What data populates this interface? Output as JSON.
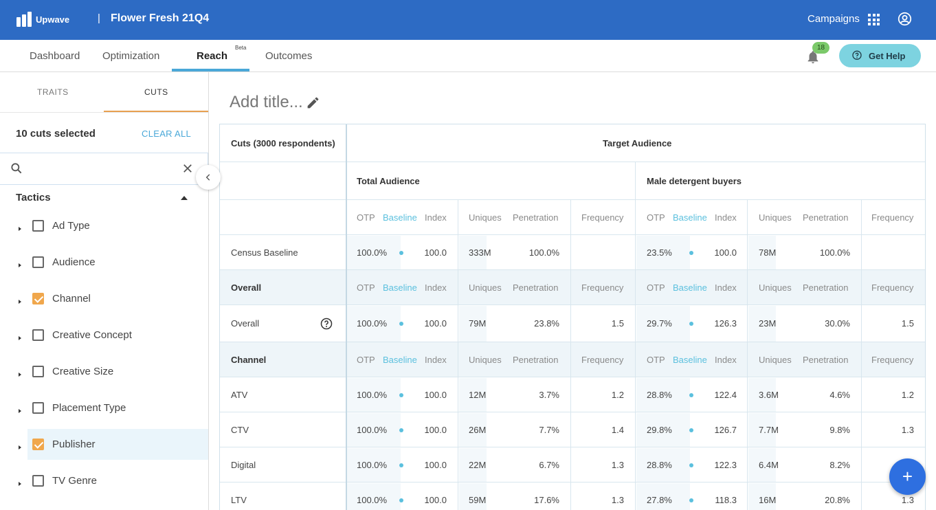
{
  "app": {
    "logo_text": "Upwave",
    "separator": "|",
    "project_name": "Flower Fresh 21Q4",
    "campaigns_label": "Campaigns"
  },
  "nav": {
    "tabs": [
      "Dashboard",
      "Optimization",
      "Reach",
      "Outcomes"
    ],
    "active_tab": "Reach",
    "beta_label": "Beta",
    "notification_count": "18",
    "help_label": "Get Help"
  },
  "sidebar": {
    "tabs": [
      "TRAITS",
      "CUTS"
    ],
    "active_tab": "CUTS",
    "selected_count_label": "10 cuts selected",
    "clear_all_label": "CLEAR ALL",
    "search_placeholder": "",
    "group_title": "Tactics",
    "items": [
      {
        "label": "Ad Type",
        "checked": false
      },
      {
        "label": "Audience",
        "checked": false
      },
      {
        "label": "Channel",
        "checked": true
      },
      {
        "label": "Creative Concept",
        "checked": false
      },
      {
        "label": "Creative Size",
        "checked": false
      },
      {
        "label": "Placement Type",
        "checked": false
      },
      {
        "label": "Publisher",
        "checked": true
      },
      {
        "label": "TV Genre",
        "checked": false
      }
    ]
  },
  "main": {
    "title_placeholder": "Add title...",
    "table": {
      "cuts_header": "Cuts (3000 respondents)",
      "target_header": "Target Audience",
      "audiences": [
        "Total Audience",
        "Male detergent buyers"
      ],
      "metric_labels": {
        "otp": "OTP",
        "baseline": "Baseline",
        "index": "Index",
        "uniques": "Uniques",
        "penetration": "Penetration",
        "frequency": "Frequency"
      },
      "rows": [
        {
          "type": "data",
          "label": "Census Baseline",
          "bold": false,
          "total": {
            "otp": "100.0%",
            "index": "100.0",
            "uniques": "333M",
            "penetration": "100.0%",
            "frequency": ""
          },
          "male": {
            "otp": "23.5%",
            "index": "100.0",
            "uniques": "78M",
            "penetration": "100.0%",
            "frequency": ""
          }
        },
        {
          "type": "section",
          "label": "Overall"
        },
        {
          "type": "data",
          "label": "Overall",
          "help": true,
          "bold": false,
          "total": {
            "otp": "100.0%",
            "index": "100.0",
            "uniques": "79M",
            "penetration": "23.8%",
            "frequency": "1.5"
          },
          "male": {
            "otp": "29.7%",
            "index": "126.3",
            "uniques": "23M",
            "penetration": "30.0%",
            "frequency": "1.5"
          }
        },
        {
          "type": "section",
          "label": "Channel"
        },
        {
          "type": "data",
          "label": "ATV",
          "bold": false,
          "total": {
            "otp": "100.0%",
            "index": "100.0",
            "uniques": "12M",
            "penetration": "3.7%",
            "frequency": "1.2"
          },
          "male": {
            "otp": "28.8%",
            "index": "122.4",
            "uniques": "3.6M",
            "penetration": "4.6%",
            "frequency": "1.2"
          }
        },
        {
          "type": "data",
          "label": "CTV",
          "bold": false,
          "total": {
            "otp": "100.0%",
            "index": "100.0",
            "uniques": "26M",
            "penetration": "7.7%",
            "frequency": "1.4"
          },
          "male": {
            "otp": "29.8%",
            "index": "126.7",
            "uniques": "7.7M",
            "penetration": "9.8%",
            "frequency": "1.3"
          }
        },
        {
          "type": "data",
          "label": "Digital",
          "bold": false,
          "total": {
            "otp": "100.0%",
            "index": "100.0",
            "uniques": "22M",
            "penetration": "6.7%",
            "frequency": "1.3"
          },
          "male": {
            "otp": "28.8%",
            "index": "122.3",
            "uniques": "6.4M",
            "penetration": "8.2%",
            "frequency": ""
          }
        },
        {
          "type": "data",
          "label": "LTV",
          "bold": false,
          "total": {
            "otp": "100.0%",
            "index": "100.0",
            "uniques": "59M",
            "penetration": "17.6%",
            "frequency": "1.3"
          },
          "male": {
            "otp": "27.8%",
            "index": "118.3",
            "uniques": "16M",
            "penetration": "20.8%",
            "frequency": "1.3"
          }
        }
      ]
    }
  },
  "fab_label": "+"
}
